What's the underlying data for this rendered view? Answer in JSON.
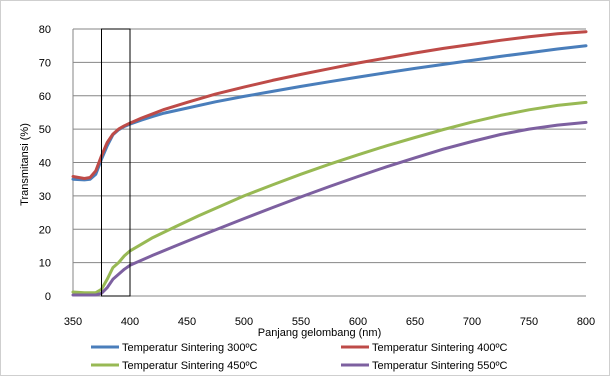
{
  "chart_data": {
    "type": "line",
    "xlabel": "Panjang gelombang  (nm)",
    "ylabel": "Transmitansi (%)",
    "xlim": [
      350,
      800
    ],
    "ylim": [
      0,
      80
    ],
    "xticks": [
      350,
      400,
      450,
      500,
      550,
      600,
      650,
      700,
      750,
      800
    ],
    "yticks": [
      0,
      10,
      20,
      30,
      40,
      50,
      60,
      70,
      80
    ],
    "grid": "horizontal",
    "legend_position": "bottom",
    "highlight_box": {
      "x": [
        375,
        400
      ],
      "y": [
        0,
        80
      ]
    },
    "series": [
      {
        "name": "Temperatur Sintering 300ºC",
        "color": "#4a7ebb",
        "points": [
          [
            350,
            35.0
          ],
          [
            360,
            34.8
          ],
          [
            365,
            35.0
          ],
          [
            370,
            36.5
          ],
          [
            375,
            41
          ],
          [
            380,
            45
          ],
          [
            385,
            48.3
          ],
          [
            390,
            49.8
          ],
          [
            395,
            50.8
          ],
          [
            400,
            51.5
          ],
          [
            410,
            52.7
          ],
          [
            420,
            53.8
          ],
          [
            430,
            54.8
          ],
          [
            450,
            56.3
          ],
          [
            475,
            58.2
          ],
          [
            500,
            59.8
          ],
          [
            525,
            61.3
          ],
          [
            550,
            62.8
          ],
          [
            575,
            64.2
          ],
          [
            600,
            65.6
          ],
          [
            625,
            66.9
          ],
          [
            650,
            68.2
          ],
          [
            675,
            69.4
          ],
          [
            700,
            70.6
          ],
          [
            725,
            71.8
          ],
          [
            750,
            72.9
          ],
          [
            775,
            74.0
          ],
          [
            800,
            75.0
          ]
        ]
      },
      {
        "name": "Temperatur Sintering 400ºC",
        "color": "#be4b48",
        "points": [
          [
            350,
            35.8
          ],
          [
            360,
            35.2
          ],
          [
            365,
            35.5
          ],
          [
            370,
            37.5
          ],
          [
            375,
            42
          ],
          [
            380,
            46
          ],
          [
            385,
            48.5
          ],
          [
            390,
            50.0
          ],
          [
            395,
            51.0
          ],
          [
            400,
            51.8
          ],
          [
            410,
            53.3
          ],
          [
            420,
            54.6
          ],
          [
            430,
            55.9
          ],
          [
            450,
            58.0
          ],
          [
            475,
            60.5
          ],
          [
            500,
            62.6
          ],
          [
            525,
            64.6
          ],
          [
            550,
            66.4
          ],
          [
            575,
            68.1
          ],
          [
            600,
            69.8
          ],
          [
            625,
            71.3
          ],
          [
            650,
            72.8
          ],
          [
            675,
            74.2
          ],
          [
            700,
            75.4
          ],
          [
            725,
            76.6
          ],
          [
            750,
            77.7
          ],
          [
            775,
            78.6
          ],
          [
            800,
            79.2
          ]
        ]
      },
      {
        "name": "Temperatur Sintering 450ºC",
        "color": "#98b954",
        "points": [
          [
            350,
            1.2
          ],
          [
            360,
            1.0
          ],
          [
            370,
            1.0
          ],
          [
            375,
            2.0
          ],
          [
            380,
            5.0
          ],
          [
            385,
            8.5
          ],
          [
            390,
            10.0
          ],
          [
            395,
            12.0
          ],
          [
            400,
            13.5
          ],
          [
            420,
            17.5
          ],
          [
            440,
            20.8
          ],
          [
            460,
            24.0
          ],
          [
            480,
            27.0
          ],
          [
            500,
            30.0
          ],
          [
            525,
            33.3
          ],
          [
            550,
            36.5
          ],
          [
            575,
            39.5
          ],
          [
            600,
            42.3
          ],
          [
            625,
            45.0
          ],
          [
            650,
            47.5
          ],
          [
            675,
            49.9
          ],
          [
            700,
            52.1
          ],
          [
            725,
            54.1
          ],
          [
            750,
            55.8
          ],
          [
            775,
            57.1
          ],
          [
            800,
            58.0
          ]
        ]
      },
      {
        "name": "Temperatur Sintering 550ºC",
        "color": "#7d60a0",
        "points": [
          [
            350,
            0.3
          ],
          [
            360,
            0.3
          ],
          [
            370,
            0.3
          ],
          [
            375,
            0.8
          ],
          [
            380,
            2.5
          ],
          [
            385,
            5.0
          ],
          [
            390,
            6.5
          ],
          [
            395,
            8.0
          ],
          [
            400,
            9.2
          ],
          [
            420,
            12.2
          ],
          [
            440,
            15.0
          ],
          [
            460,
            17.8
          ],
          [
            480,
            20.5
          ],
          [
            500,
            23.2
          ],
          [
            525,
            26.5
          ],
          [
            550,
            29.7
          ],
          [
            575,
            32.8
          ],
          [
            600,
            35.8
          ],
          [
            625,
            38.7
          ],
          [
            650,
            41.4
          ],
          [
            675,
            44.0
          ],
          [
            700,
            46.3
          ],
          [
            725,
            48.4
          ],
          [
            750,
            50.0
          ],
          [
            775,
            51.2
          ],
          [
            800,
            52.0
          ]
        ]
      }
    ]
  }
}
